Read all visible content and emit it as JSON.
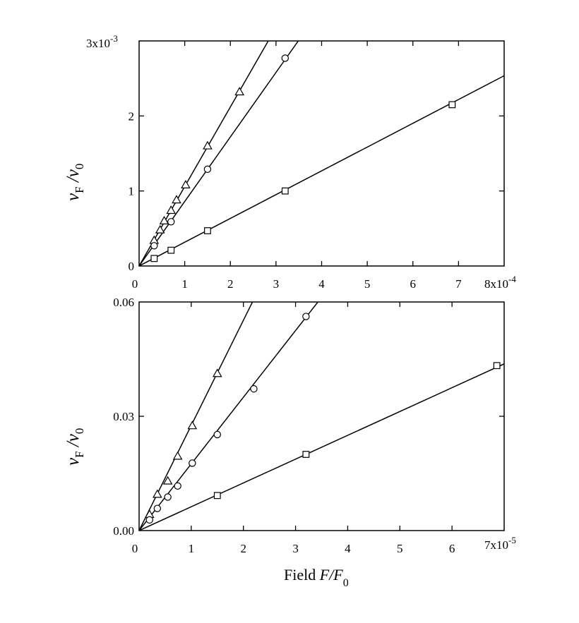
{
  "chart_data": [
    {
      "type": "scatter",
      "fit_lines": true,
      "xlim": [
        0,
        8
      ],
      "ylim": [
        0,
        3
      ],
      "x_ticks": [
        0,
        1,
        2,
        3,
        4,
        5,
        6,
        7
      ],
      "x_tick_labels": [
        "0",
        "1",
        "2",
        "3",
        "4",
        "5",
        "6",
        "7"
      ],
      "x_scale_label": "8x10",
      "x_scale_exp": "-4",
      "y_ticks": [
        0,
        1,
        2
      ],
      "y_tick_labels": [
        "0",
        "1",
        "2"
      ],
      "y_scale_label": "3x10",
      "y_scale_exp": "-3",
      "ylabel_main": "v",
      "ylabel_sub1": "F",
      "ylabel_slash": " /v",
      "ylabel_sub2": "0",
      "series": [
        {
          "marker": "triangle",
          "slope": 1.06,
          "x": [
            0.33,
            0.46,
            0.55,
            0.7,
            0.82,
            1.02,
            1.5,
            2.2
          ],
          "y": [
            0.34,
            0.48,
            0.6,
            0.74,
            0.88,
            1.08,
            1.6,
            2.32
          ]
        },
        {
          "marker": "circle",
          "slope": 0.86,
          "x": [
            0.33,
            0.7,
            1.5,
            3.2
          ],
          "y": [
            0.27,
            0.59,
            1.29,
            2.77
          ]
        },
        {
          "marker": "square",
          "slope": 0.317,
          "x": [
            0.33,
            0.7,
            1.5,
            3.2,
            6.86
          ],
          "y": [
            0.1,
            0.21,
            0.47,
            1.0,
            2.15
          ]
        }
      ]
    },
    {
      "type": "scatter",
      "fit_lines": true,
      "xlim": [
        0,
        7
      ],
      "ylim": [
        0,
        0.06
      ],
      "x_ticks": [
        0,
        1,
        2,
        3,
        4,
        5,
        6
      ],
      "x_tick_labels": [
        "0",
        "1",
        "2",
        "3",
        "4",
        "5",
        "6"
      ],
      "x_scale_label": "7x10",
      "x_scale_exp": "-5",
      "y_ticks": [
        0,
        0.03,
        0.06
      ],
      "y_tick_labels": [
        "0.00",
        "0.03",
        "0.06"
      ],
      "ylabel_main": "v",
      "ylabel_sub1": "F",
      "ylabel_slash": " /v",
      "ylabel_sub2": "0",
      "xlabel_main": "Field ",
      "xlabel_var": "F",
      "xlabel_slash": "/F",
      "xlabel_sub": "0",
      "series": [
        {
          "marker": "triangle",
          "slope": 0.0276,
          "x": [
            0.2,
            0.35,
            0.55,
            0.74,
            1.02,
            1.5
          ],
          "y": [
            0.0042,
            0.0095,
            0.013,
            0.0195,
            0.0275,
            0.0412
          ]
        },
        {
          "marker": "circle",
          "slope": 0.0175,
          "x": [
            0.2,
            0.35,
            0.55,
            0.74,
            1.02,
            1.5,
            2.2,
            3.2
          ],
          "y": [
            0.0028,
            0.0058,
            0.0088,
            0.0117,
            0.0177,
            0.0252,
            0.0372,
            0.0562
          ]
        },
        {
          "marker": "square",
          "slope": 0.00625,
          "x": [
            1.5,
            3.2,
            6.86
          ],
          "y": [
            0.0092,
            0.02,
            0.0433
          ]
        }
      ]
    }
  ]
}
